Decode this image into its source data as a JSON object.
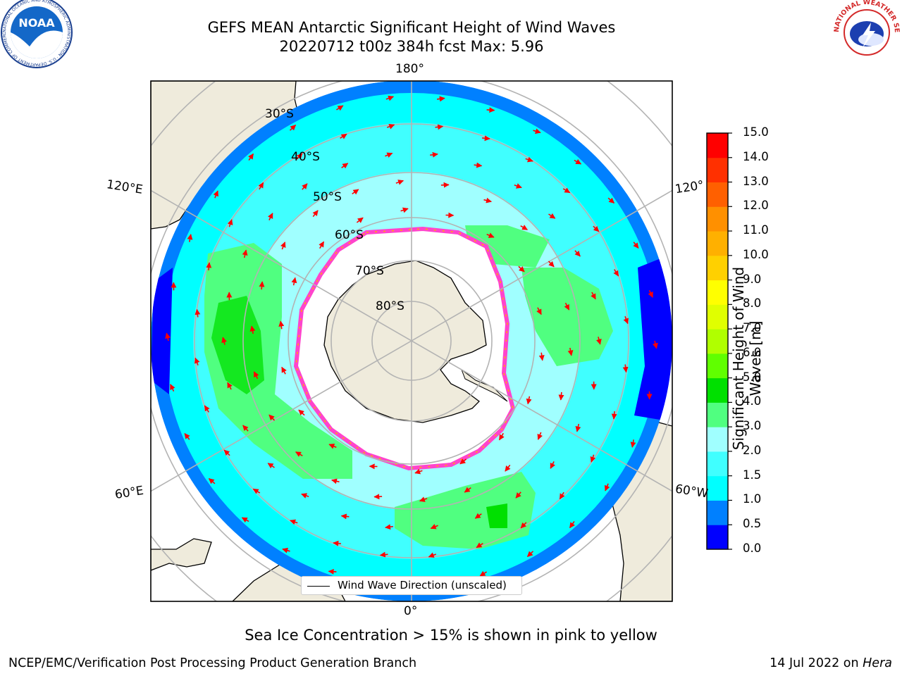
{
  "title": {
    "line1": "GEFS MEAN Antarctic Significant Height of Wind Waves",
    "line2": "20220712 t00z 384h fcst   Max: 5.96"
  },
  "logos": {
    "noaa": "NOAA",
    "noaa_ring": "NATIONAL OCEANIC AND ATMOSPHERIC ADMINISTRATION · U.S. DEPARTMENT OF COMMERCE ·",
    "nws_ring": "NATIONAL WEATHER SERVICE"
  },
  "gridlines": {
    "lon_top": "180°",
    "lon_bottom": "0°",
    "lon_left_upper": "120°E",
    "lon_left_lower": "60°E",
    "lon_right_upper": "120°",
    "lon_right_lower": "60°W",
    "lat_30": "30°S",
    "lat_40": "40°S",
    "lat_50": "50°S",
    "lat_60": "60°S",
    "lat_70": "70°S",
    "lat_80": "80°S"
  },
  "legend": {
    "label": "Wind Wave Direction (unscaled)"
  },
  "colorbar": {
    "title": "Significant Height of Wind Waves [m]",
    "title_line1": "Significant Height of Wind",
    "title_line2": "Waves [m]",
    "ticks": [
      "0.0",
      "0.5",
      "1.0",
      "1.5",
      "2.0",
      "3.0",
      "4.0",
      "5.0",
      "6.0",
      "7.0",
      "8.0",
      "9.0",
      "10.0",
      "11.0",
      "12.0",
      "13.0",
      "14.0",
      "15.0"
    ],
    "colors": [
      "#0000ff",
      "#0080ff",
      "#00ffff",
      "#40ffff",
      "#a0ffff",
      "#50ff80",
      "#00e000",
      "#60ff00",
      "#b0ff00",
      "#e0ff00",
      "#ffff00",
      "#ffd000",
      "#ffb000",
      "#ff9000",
      "#ff6000",
      "#ff3000",
      "#ff0000"
    ]
  },
  "colors": {
    "land": "#efebdc",
    "ocean_deep": "#0000ff",
    "sea_ice_edge": "#ff44cc",
    "arrows": "#ff0000"
  },
  "note": "Sea Ice Concentration > 15% is shown in pink to yellow",
  "footer": {
    "left": "NCEP/EMC/Verification Post Processing Product Generation Branch",
    "right_prefix": "14 Jul 2022 on ",
    "right_host": "Hera"
  }
}
